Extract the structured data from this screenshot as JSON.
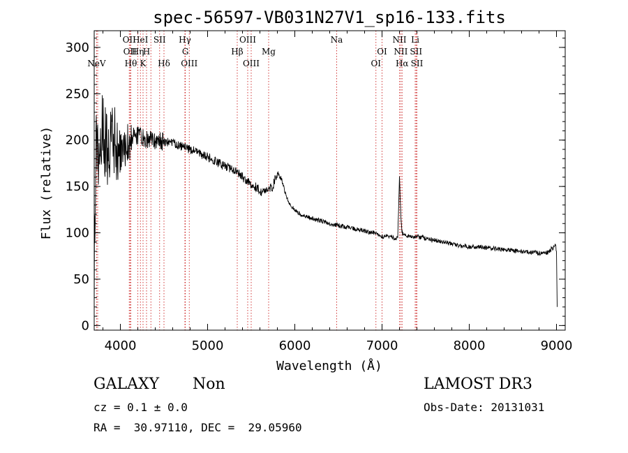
{
  "chart_data": {
    "type": "line",
    "title": "spec-56597-VB031N27V1_sp16-133.fits",
    "xlabel": "Wavelength (Å)",
    "ylabel": "Flux (relative)",
    "xlim": [
      3700,
      9100
    ],
    "ylim": [
      -5,
      318
    ],
    "xticks": [
      4000,
      5000,
      6000,
      7000,
      8000,
      9000
    ],
    "yticks": [
      0,
      50,
      100,
      150,
      200,
      250,
      300
    ],
    "x_minor_step": 200,
    "y_minor_step": 10,
    "spectrum_anchors": {
      "x": [
        3700,
        3720,
        3760,
        3800,
        3850,
        3900,
        3950,
        4000,
        4050,
        4100,
        4150,
        4200,
        4300,
        4400,
        4500,
        4600,
        4700,
        4800,
        4900,
        5000,
        5100,
        5200,
        5300,
        5350,
        5400,
        5450,
        5500,
        5550,
        5600,
        5650,
        5700,
        5750,
        5780,
        5800,
        5850,
        5900,
        5950,
        6000,
        6100,
        6200,
        6300,
        6400,
        6500,
        6600,
        6700,
        6800,
        6880,
        6950,
        7000,
        7050,
        7100,
        7150,
        7180,
        7200,
        7215,
        7230,
        7250,
        7300,
        7350,
        7400,
        7450,
        7500,
        7600,
        7700,
        7800,
        7900,
        8000,
        8100,
        8200,
        8300,
        8400,
        8500,
        8600,
        8700,
        8800,
        8900,
        8960,
        8990,
        9000,
        9010
      ],
      "flux": [
        60,
        190,
        200,
        205,
        195,
        200,
        190,
        185,
        192,
        200,
        205,
        205,
        200,
        200,
        198,
        197,
        193,
        190,
        186,
        182,
        176,
        172,
        168,
        165,
        160,
        155,
        152,
        150,
        145,
        144,
        148,
        150,
        160,
        165,
        158,
        140,
        130,
        124,
        118,
        115,
        113,
        110,
        108,
        106,
        104,
        102,
        100,
        99,
        96,
        97,
        95,
        94,
        95,
        160,
        120,
        100,
        98,
        96,
        96,
        96,
        95,
        94,
        92,
        90,
        88,
        86,
        85,
        85,
        84,
        83,
        82,
        81,
        80,
        79,
        78,
        79,
        84,
        86,
        80,
        5
      ],
      "noise_regions": [
        {
          "x_start": 3700,
          "x_end": 4000,
          "amplitude": 45
        },
        {
          "x_start": 4000,
          "x_end": 4150,
          "amplitude": 22
        },
        {
          "x_start": 4150,
          "x_end": 4500,
          "amplitude": 10
        },
        {
          "x_start": 4500,
          "x_end": 5800,
          "amplitude": 5
        },
        {
          "x_start": 5800,
          "x_end": 9000,
          "amplitude": 2.5
        }
      ]
    },
    "line_markers": [
      {
        "x": 3727,
        "row": 2,
        "label": "NeV"
      },
      {
        "x": 3740,
        "row": null,
        "label": ""
      },
      {
        "x": 4102,
        "row": 0,
        "label": "OII"
      },
      {
        "x": 4110,
        "row": 1,
        "label": "OII"
      },
      {
        "x": 4120,
        "row": 2,
        "label": "Hθ"
      },
      {
        "x": 4200,
        "row": 1,
        "label": "Hη"
      },
      {
        "x": 4230,
        "row": 0,
        "label": "HeI"
      },
      {
        "x": 4260,
        "row": 2,
        "label": "K"
      },
      {
        "x": 4300,
        "row": 1,
        "label": "H"
      },
      {
        "x": 4350,
        "row": null,
        "label": ""
      },
      {
        "x": 4450,
        "row": 0,
        "label": "SII"
      },
      {
        "x": 4500,
        "row": 2,
        "label": "Hδ"
      },
      {
        "x": 4740,
        "row": 0,
        "label": "Hγ"
      },
      {
        "x": 4745,
        "row": 1,
        "label": "G"
      },
      {
        "x": 4790,
        "row": 2,
        "label": "OIII"
      },
      {
        "x": 5340,
        "row": 1,
        "label": "Hβ"
      },
      {
        "x": 5460,
        "row": 0,
        "label": "OIII"
      },
      {
        "x": 5500,
        "row": 2,
        "label": "OIII"
      },
      {
        "x": 5700,
        "row": 1,
        "label": "Mg"
      },
      {
        "x": 6480,
        "row": 0,
        "label": "Na"
      },
      {
        "x": 6930,
        "row": 2,
        "label": "OI"
      },
      {
        "x": 7000,
        "row": 1,
        "label": "OI"
      },
      {
        "x": 7200,
        "row": 0,
        "label": "NII"
      },
      {
        "x": 7215,
        "row": 1,
        "label": "NII"
      },
      {
        "x": 7230,
        "row": 2,
        "label": "Hα"
      },
      {
        "x": 7380,
        "row": 0,
        "label": "Li"
      },
      {
        "x": 7390,
        "row": 1,
        "label": "SII"
      },
      {
        "x": 7400,
        "row": 2,
        "label": "SII"
      }
    ],
    "marker_color": "#cc2222"
  },
  "info": {
    "object_class": "GALAXY",
    "subclass": "Non",
    "survey": "LAMOST DR3",
    "cz": "cz = 0.1 ± 0.0",
    "obs_date": "Obs-Date: 20131031",
    "coords": "RA =  30.97110, DEC =  29.05960"
  }
}
